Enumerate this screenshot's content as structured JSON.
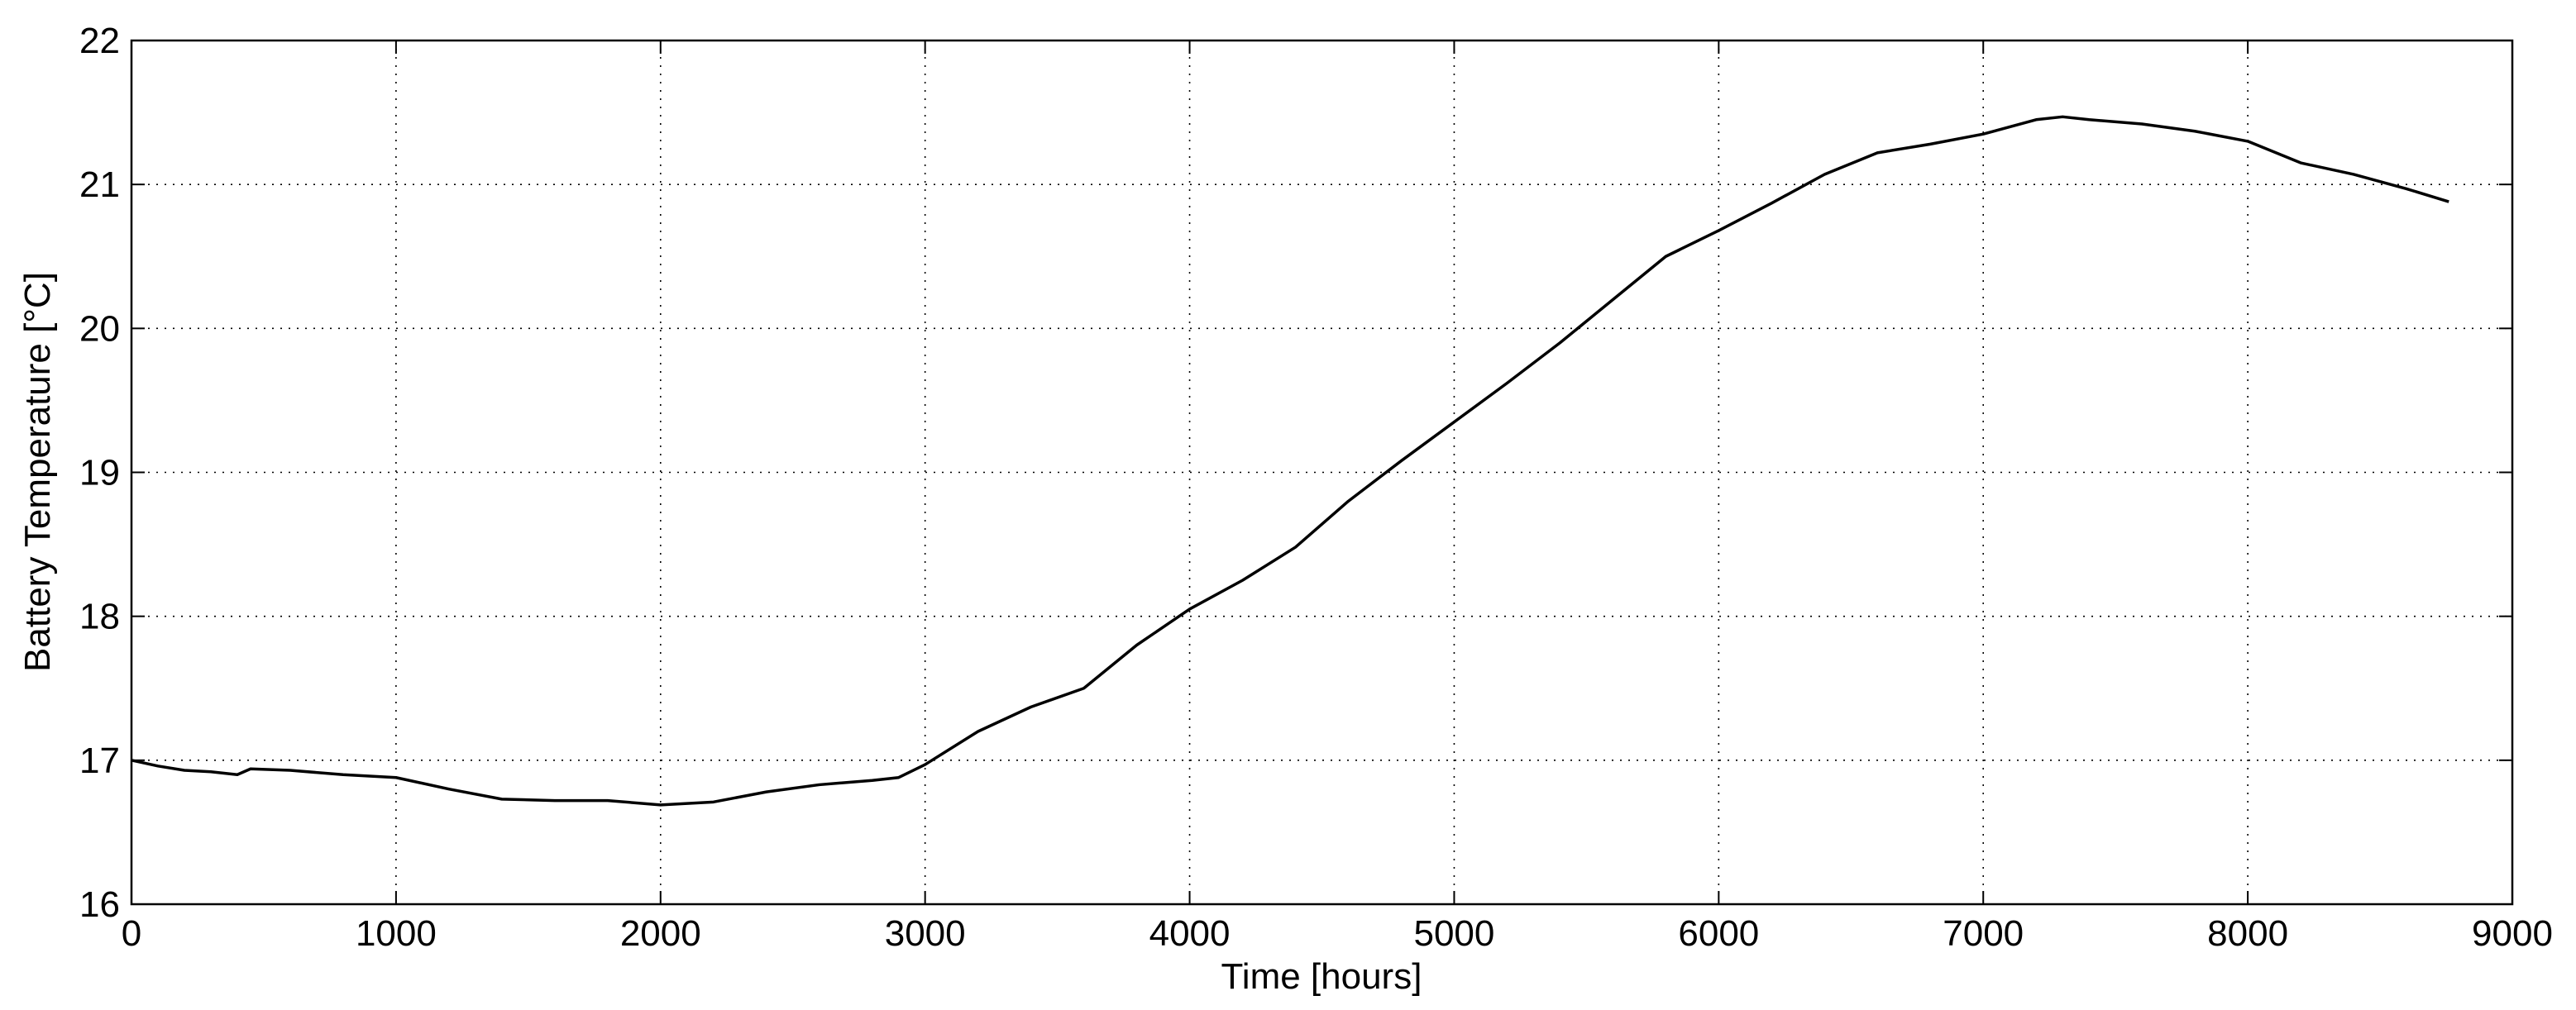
{
  "chart_data": {
    "type": "line",
    "xlabel": "Time [hours]",
    "ylabel": "Battery Temperature [°C]",
    "x": [
      0,
      100,
      200,
      300,
      400,
      450,
      600,
      800,
      1000,
      1200,
      1400,
      1600,
      1800,
      2000,
      2200,
      2400,
      2600,
      2800,
      2900,
      3000,
      3200,
      3400,
      3600,
      3800,
      4000,
      4200,
      4400,
      4600,
      4800,
      5000,
      5200,
      5400,
      5600,
      5800,
      6000,
      6200,
      6400,
      6600,
      6800,
      7000,
      7200,
      7300,
      7400,
      7600,
      7800,
      8000,
      8200,
      8400,
      8600,
      8760
    ],
    "series": [
      {
        "name": "Battery Temperature",
        "color": "#000000",
        "values": [
          17.0,
          16.96,
          16.93,
          16.92,
          16.9,
          16.94,
          16.93,
          16.9,
          16.88,
          16.8,
          16.73,
          16.72,
          16.72,
          16.69,
          16.71,
          16.78,
          16.83,
          16.86,
          16.88,
          16.97,
          17.2,
          17.37,
          17.5,
          17.8,
          18.05,
          18.25,
          18.48,
          18.8,
          19.08,
          19.35,
          19.62,
          19.9,
          20.2,
          20.5,
          20.68,
          20.87,
          21.07,
          21.22,
          21.28,
          21.35,
          21.45,
          21.47,
          21.45,
          21.42,
          21.37,
          21.3,
          21.15,
          21.07,
          20.97,
          20.88
        ]
      }
    ],
    "xlim": [
      0,
      9000
    ],
    "xticks": [
      0,
      1000,
      2000,
      3000,
      4000,
      5000,
      6000,
      7000,
      8000,
      9000
    ],
    "ylim": [
      16,
      22
    ],
    "yticks": [
      16,
      17,
      18,
      19,
      20,
      21,
      22
    ],
    "grid": true
  }
}
